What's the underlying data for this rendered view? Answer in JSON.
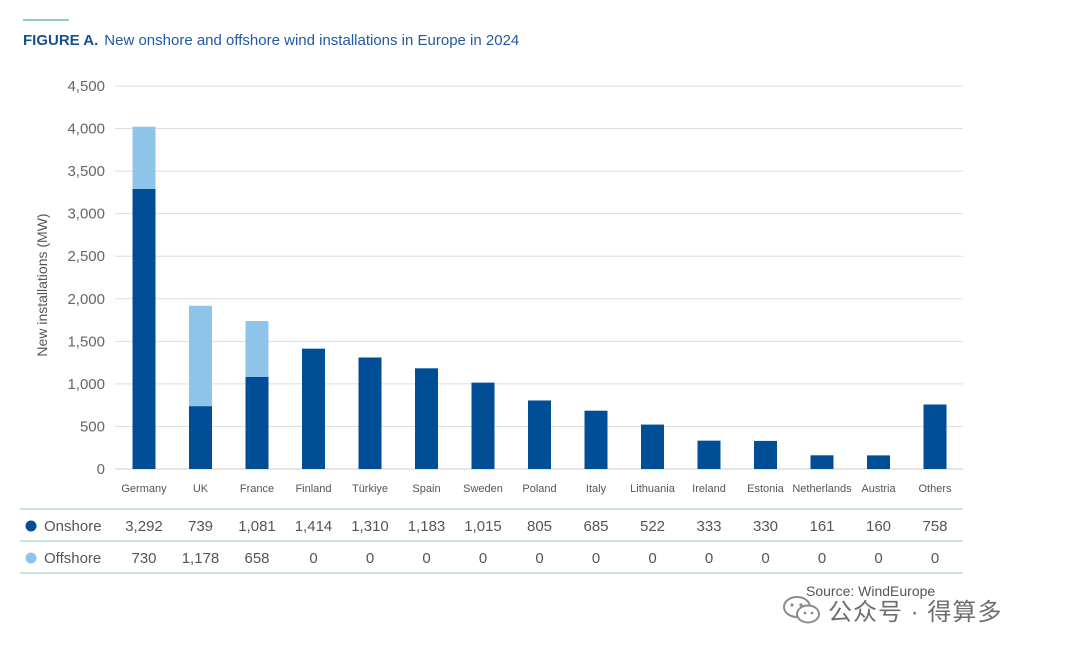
{
  "figure": {
    "label": "FIGURE A.",
    "title": "New onshore and offshore wind installations in Europe in 2024"
  },
  "source": "Source: WindEurope",
  "watermark": "公众号 · 得算多",
  "colors": {
    "onshore": "#004e96",
    "offshore": "#8ec4ea",
    "grid": "#dddddd",
    "table_line": "#a6d8bd",
    "accent": "#8fd1b0"
  },
  "chart_data": {
    "type": "bar",
    "stacked": true,
    "ylabel": "New installations (MW)",
    "ylim": [
      0,
      4500
    ],
    "yticks": [
      0,
      500,
      1000,
      1500,
      2000,
      2500,
      3000,
      3500,
      4000,
      4500
    ],
    "ytick_labels": [
      "0",
      "500",
      "1,000",
      "1,500",
      "2,000",
      "2,500",
      "3,000",
      "3,500",
      "4,000",
      "4,500"
    ],
    "categories": [
      "Germany",
      "UK",
      "France",
      "Finland",
      "Türkiye",
      "Spain",
      "Sweden",
      "Poland",
      "Italy",
      "Lithuania",
      "Ireland",
      "Estonia",
      "Netherlands",
      "Austria",
      "Others"
    ],
    "series": [
      {
        "name": "Onshore",
        "color": "#004e96",
        "values": [
          3292,
          739,
          1081,
          1414,
          1310,
          1183,
          1015,
          805,
          685,
          522,
          333,
          330,
          161,
          160,
          758
        ],
        "labels": [
          "3,292",
          "739",
          "1,081",
          "1,414",
          "1,310",
          "1,183",
          "1,015",
          "805",
          "685",
          "522",
          "333",
          "330",
          "161",
          "160",
          "758"
        ]
      },
      {
        "name": "Offshore",
        "color": "#8ec4ea",
        "values": [
          730,
          1178,
          658,
          0,
          0,
          0,
          0,
          0,
          0,
          0,
          0,
          0,
          0,
          0,
          0
        ],
        "labels": [
          "730",
          "1,178",
          "658",
          "0",
          "0",
          "0",
          "0",
          "0",
          "0",
          "0",
          "0",
          "0",
          "0",
          "0",
          "0"
        ]
      }
    ]
  }
}
